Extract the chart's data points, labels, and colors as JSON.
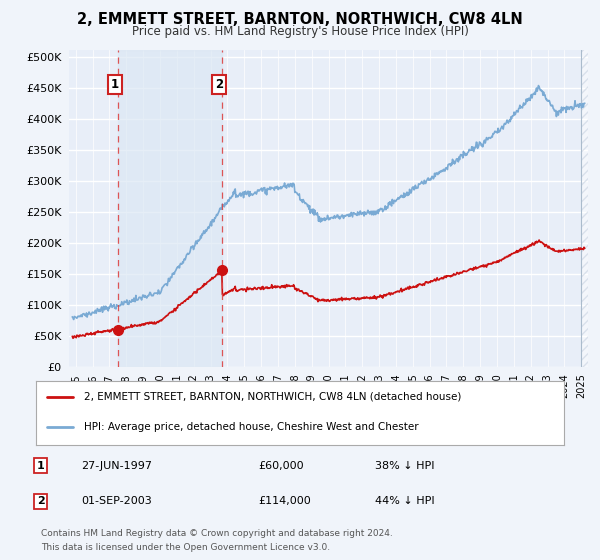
{
  "title": "2, EMMETT STREET, BARNTON, NORTHWICH, CW8 4LN",
  "subtitle": "Price paid vs. HM Land Registry's House Price Index (HPI)",
  "bg_color": "#f0f4fa",
  "plot_bg_color": "#e8eef8",
  "grid_color": "#ffffff",
  "sale1": {
    "date_num": 1997.49,
    "price": 60000,
    "label": "1",
    "date_str": "27-JUN-1997",
    "pct": "38% ↓ HPI"
  },
  "sale2": {
    "date_num": 2003.67,
    "price": 114000,
    "label": "2",
    "date_str": "01-SEP-2003",
    "pct": "44% ↓ HPI"
  },
  "hpi_label": "HPI: Average price, detached house, Cheshire West and Chester",
  "sale_label": "2, EMMETT STREET, BARNTON, NORTHWICH, CW8 4LN (detached house)",
  "footer1": "Contains HM Land Registry data © Crown copyright and database right 2024.",
  "footer2": "This data is licensed under the Open Government Licence v3.0.",
  "yticks": [
    0,
    50000,
    100000,
    150000,
    200000,
    250000,
    300000,
    350000,
    400000,
    450000,
    500000
  ],
  "ylim": [
    0,
    510000
  ],
  "xlim_start": 1994.6,
  "xlim_end": 2025.4,
  "hpi_color": "#7aaad4",
  "sale_color": "#cc1111",
  "dashed_line_color": "#dd4444",
  "shade_color": "#dce8f4",
  "future_hatch_color": "#c0ccdd"
}
